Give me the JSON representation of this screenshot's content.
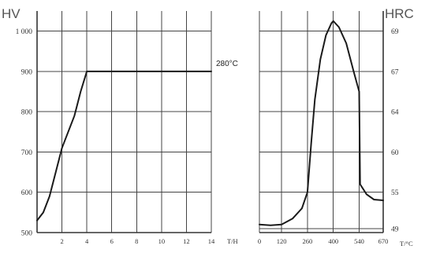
{
  "chart_data": [
    {
      "type": "line",
      "ylabel": "HV",
      "xlabel": "T/H",
      "x_ticks": [
        "2",
        "4",
        "6",
        "8",
        "10",
        "12",
        "14"
      ],
      "y_ticks": [
        "500",
        "600",
        "700",
        "800",
        "900",
        "1 000"
      ],
      "xlim": [
        0,
        14
      ],
      "ylim": [
        500,
        1050
      ],
      "grid": true,
      "annotation": "280°C",
      "series": [
        {
          "points": [
            [
              0,
              530
            ],
            [
              0.5,
              550
            ],
            [
              1,
              590
            ],
            [
              1.5,
              650
            ],
            [
              2,
              710
            ],
            [
              2.5,
              750
            ],
            [
              3,
              790
            ],
            [
              3.5,
              850
            ],
            [
              4,
              900
            ],
            [
              5,
              900
            ],
            [
              6,
              900
            ],
            [
              8,
              900
            ],
            [
              10,
              900
            ],
            [
              12,
              900
            ],
            [
              14,
              900
            ]
          ]
        }
      ]
    },
    {
      "type": "line",
      "ylabel": "HRC",
      "xlabel": "T/°C",
      "x_ticks": [
        "0",
        "120",
        "260",
        "400",
        "540",
        "670"
      ],
      "y_ticks": [
        "49",
        "55",
        "60",
        "64",
        "67",
        "69"
      ],
      "xlim": [
        0,
        670
      ],
      "ylim": [
        500,
        1050
      ],
      "grid": true,
      "series": [
        {
          "points": [
            [
              0,
              520
            ],
            [
              60,
              518
            ],
            [
              120,
              520
            ],
            [
              180,
              535
            ],
            [
              230,
              560
            ],
            [
              260,
              600
            ],
            [
              280,
              720
            ],
            [
              300,
              830
            ],
            [
              330,
              930
            ],
            [
              360,
              990
            ],
            [
              390,
              1020
            ],
            [
              400,
              1025
            ],
            [
              430,
              1010
            ],
            [
              470,
              970
            ],
            [
              510,
              900
            ],
            [
              540,
              850
            ],
            [
              545,
              620
            ],
            [
              580,
              595
            ],
            [
              620,
              582
            ],
            [
              670,
              580
            ]
          ]
        }
      ]
    }
  ]
}
